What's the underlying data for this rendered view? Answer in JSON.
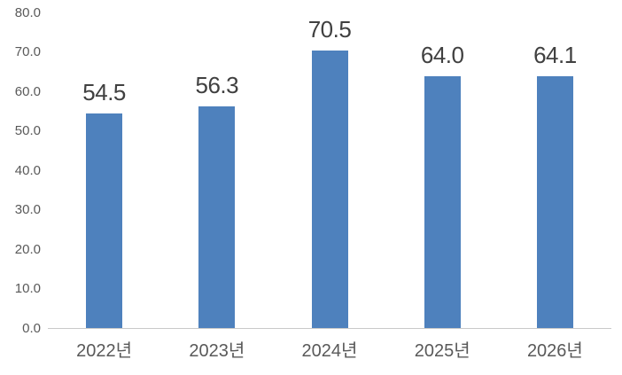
{
  "page": {
    "background": "#ffffff"
  },
  "chart_data": {
    "type": "bar",
    "title": "",
    "xlabel": "",
    "ylabel": "",
    "categories": [
      "2022년",
      "2023년",
      "2024년",
      "2025년",
      "2026년"
    ],
    "values": [
      54.5,
      56.3,
      70.5,
      64.0,
      64.1
    ],
    "data_labels": [
      "54.5",
      "56.3",
      "70.5",
      "64.0",
      "64.1"
    ],
    "ylim": [
      0,
      80
    ],
    "ytick_step": 10,
    "yticks": [
      "80.0",
      "70.0",
      "60.0",
      "50.0",
      "40.0",
      "30.0",
      "20.0",
      "10.0",
      "0.0"
    ],
    "grid": false,
    "legend": false,
    "bar_color": "#4e81bd",
    "data_label_color": "#404040",
    "tick_label_color": "#595959",
    "axis_line_color": "#c9c9c9"
  }
}
